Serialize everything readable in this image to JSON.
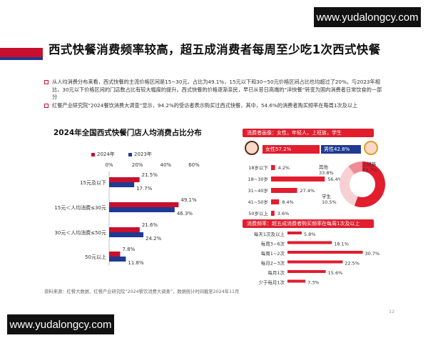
{
  "watermark": {
    "top_right": "www.yudalongcy.com",
    "bottom_left": "www.yudalongcy.com"
  },
  "header": {
    "title": "西式快餐消费频率较高，超五成消费者每周至少吃1次西式快餐"
  },
  "bullets": [
    "从人均消费分布来看，西式快餐的主流价格区间是15~30元，占比为49.1%，15元以下和30~50元价格区间占比也均超过了20%。与2023年相比，30元以下价格区间的门店数占比有较大幅度的提升。西式快餐的价格逐渐亲民，早已从昔日高端的“洋快餐”转变为国内消费者日常饮食的一部分",
    "红餐产业研究院“2024餐饮消费大调查”显示，94.2%的受访者表示购买过西式快餐，其中，54.6%的消费者购买频率在每周1次及以上"
  ],
  "colors": {
    "red": "#c8102e",
    "blue": "#1f3a93",
    "panel_red": "#e11d2e",
    "pink": "#f2b6bd",
    "lightblue": "#c9d3ee"
  },
  "chart_data": [
    {
      "type": "bar",
      "orientation": "horizontal",
      "title": "2024年全国西式快餐门店人均消费占比分布",
      "categories": [
        "15元及以下",
        "15元＜人均消费≤30元",
        "30元＜人均消费≤50元",
        "50元以上"
      ],
      "series": [
        {
          "name": "2024年",
          "color": "#c8102e",
          "values": [
            21.5,
            49.1,
            21.6,
            7.8
          ]
        },
        {
          "name": "2023年",
          "color": "#1f3a93",
          "values": [
            17.7,
            46.3,
            24.2,
            11.8
          ]
        }
      ],
      "value_labels": {
        "2024年": [
          "21.5%",
          "49.1%",
          "21.6%",
          "7.8%"
        ],
        "2023年": [
          "17.7%",
          "46.3%",
          "24.2%",
          "11.8%"
        ]
      },
      "xlim": [
        0,
        60
      ],
      "xticks": [
        "0%",
        "20%",
        "40%",
        "60%"
      ],
      "legend": "top-left",
      "grid": false
    },
    {
      "type": "bar",
      "title": "消费者画像：女性，年轻人，上班族，学生",
      "gender": {
        "categories": [
          "女性",
          "男性"
        ],
        "values": [
          57.2,
          42.8
        ],
        "labels": [
          "女性57.2%",
          "男性42.8%"
        ]
      }
    },
    {
      "type": "bar",
      "orientation": "horizontal",
      "categories": [
        "18岁以下",
        "18~30岁",
        "31~40岁",
        "41~50岁",
        "50岁以上"
      ],
      "values": [
        4.2,
        56.4,
        27.4,
        8.4,
        3.6
      ],
      "labels": [
        "4.2%",
        "56.4%",
        "27.4%",
        "8.4%",
        "3.6%"
      ]
    },
    {
      "type": "pie",
      "donut": true,
      "categories": [
        "上班族",
        "其他",
        "学生"
      ],
      "values": [
        55.7,
        33.8,
        10.5
      ],
      "labels": [
        "55.7%",
        "33.8%",
        "10.5%"
      ],
      "colors": [
        "#e11d2e",
        "#f7d0d4",
        "#f08a94"
      ]
    },
    {
      "type": "bar",
      "orientation": "horizontal",
      "title": "消费频率：超五成消费者购买频率在每周1次及以上",
      "categories": [
        "每天1次及以上",
        "每周3~6次",
        "每周1~2次",
        "每月2~3次",
        "每月1次",
        "少于每月1次"
      ],
      "values": [
        5.8,
        18.1,
        30.7,
        22.5,
        15.6,
        7.3
      ],
      "labels": [
        "5.8%",
        "18.1%",
        "30.7%",
        "22.5%",
        "15.6%",
        "7.3%"
      ]
    }
  ],
  "footer": {
    "source": "资料来源：红餐大数据、红餐产业研究院“2024餐饮消费大调查”，数据统计时间截至2024年11月",
    "page": "12"
  }
}
